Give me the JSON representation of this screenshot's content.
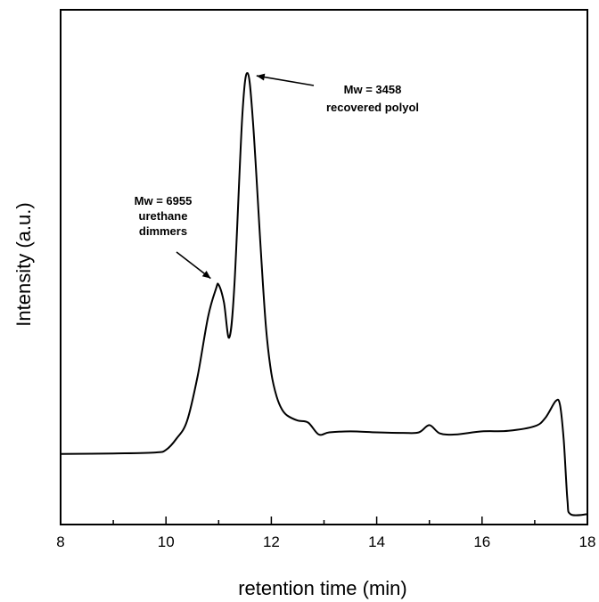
{
  "chart_data": {
    "type": "line",
    "title": "",
    "xlabel": "retention time (min)",
    "ylabel": "Intensity (a.u.)",
    "xlim": [
      8,
      18
    ],
    "ylim": [
      0,
      100
    ],
    "xticks": [
      8,
      10,
      12,
      14,
      16,
      18
    ],
    "x_tick_labels": [
      "8",
      "10",
      "12",
      "14",
      "16",
      "18"
    ],
    "grid": false,
    "series": [
      {
        "x": [
          8.0,
          9.0,
          9.8,
          10.0,
          10.2,
          10.4,
          10.6,
          10.8,
          10.95,
          11.0,
          11.1,
          11.2,
          11.3,
          11.45,
          11.55,
          11.65,
          11.8,
          11.9,
          12.0,
          12.1,
          12.2,
          12.3,
          12.5,
          12.7,
          12.9,
          13.1,
          13.5,
          14.0,
          14.5,
          14.8,
          15.0,
          15.2,
          15.5,
          16.0,
          16.5,
          17.0,
          17.2,
          17.4,
          17.48,
          17.55,
          17.62,
          17.68,
          18.0
        ],
        "y": [
          13.7,
          13.8,
          14.0,
          14.5,
          16.7,
          20.1,
          28.8,
          40.4,
          45.8,
          46.6,
          43.2,
          36.3,
          46.6,
          79.6,
          87.7,
          78.5,
          53.3,
          38.1,
          29.4,
          24.9,
          22.4,
          21.2,
          20.2,
          19.8,
          17.5,
          17.9,
          18.1,
          17.9,
          17.8,
          17.9,
          19.3,
          17.7,
          17.5,
          18.1,
          18.2,
          19.1,
          20.7,
          24.0,
          23.2,
          16.5,
          4.9,
          2.0,
          2.0
        ]
      }
    ],
    "annotations": [
      {
        "lines": [
          "Mw = 3458",
          "recovered polyol"
        ],
        "target_x": 11.55,
        "target_y": 87.7
      },
      {
        "lines": [
          "Mw = 6955",
          "urethane",
          "dimmers"
        ],
        "target_x": 10.95,
        "target_y": 46.6
      }
    ]
  }
}
